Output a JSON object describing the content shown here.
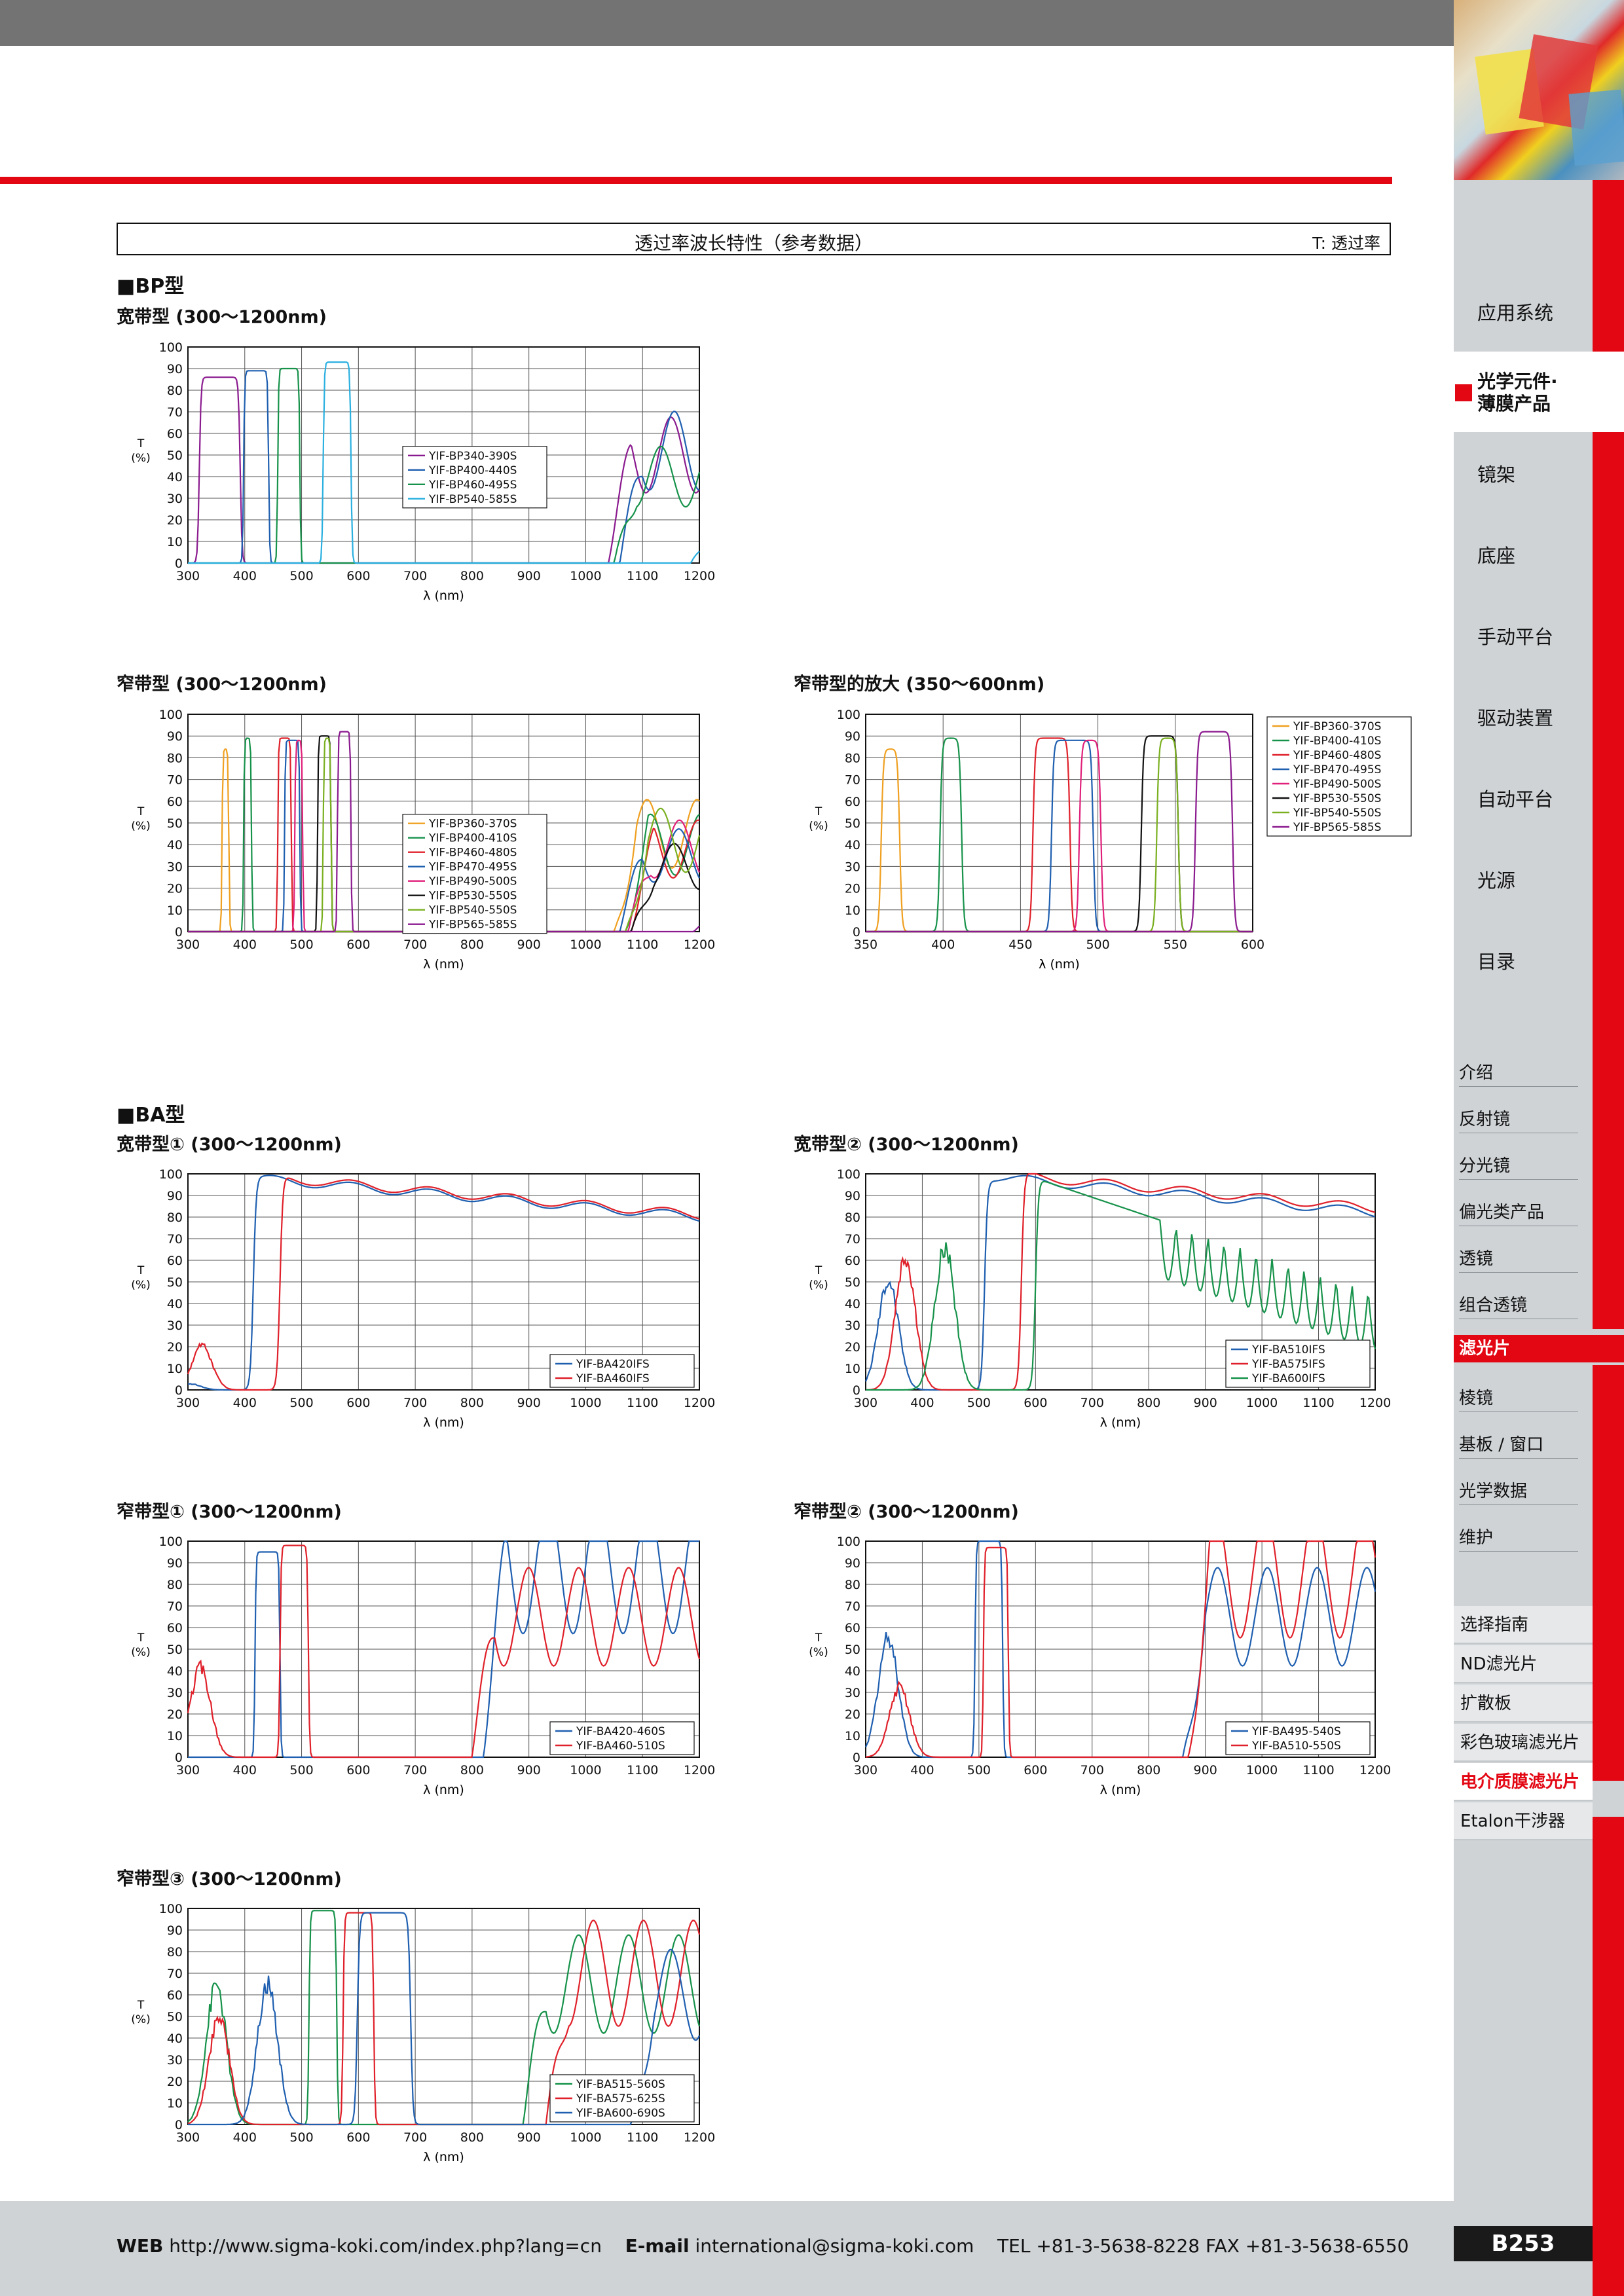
{
  "header": {
    "table_title": "透过率波长特性（参考数据）",
    "table_note": "T: 透过率"
  },
  "sections": {
    "bp": "■BP型",
    "ba": "■BA型"
  },
  "charts": {
    "bp_wide": {
      "title": "宽带型 (300～1200nm)"
    },
    "bp_narrow": {
      "title": "窄带型 (300～1200nm)"
    },
    "bp_zoom": {
      "title": "窄带型的放大 (350～600nm)"
    },
    "ba_wide1": {
      "title": "宽带型① (300～1200nm)"
    },
    "ba_wide2": {
      "title": "宽带型② (300～1200nm)"
    },
    "ba_narrow1": {
      "title": "窄带型① (300～1200nm)"
    },
    "ba_narrow2": {
      "title": "窄带型② (300～1200nm)"
    },
    "ba_narrow3": {
      "title": "窄带型③ (300～1200nm)"
    }
  },
  "chart_data": [
    {
      "id": "bp_wide",
      "type": "line",
      "xlabel": "λ (nm)",
      "ylabel": "T\n(%)",
      "xlim": [
        300,
        1200
      ],
      "ylim": [
        0,
        100
      ],
      "xticks": [
        300,
        400,
        500,
        600,
        700,
        800,
        900,
        1000,
        1100,
        1200
      ],
      "yticks": [
        0,
        10,
        20,
        30,
        40,
        50,
        60,
        70,
        80,
        90,
        100
      ],
      "legend": "center",
      "series": [
        {
          "name": "YIF-BP340-390S",
          "color": "#8b1a8f",
          "band": [
            320,
            392
          ],
          "peak": 86,
          "tail": [
            1040,
            50
          ]
        },
        {
          "name": "YIF-BP400-440S",
          "color": "#1f5fb0",
          "band": [
            398,
            442
          ],
          "peak": 89,
          "tail": [
            1060,
            52
          ]
        },
        {
          "name": "YIF-BP460-495S",
          "color": "#16924a",
          "band": [
            458,
            497
          ],
          "peak": 90,
          "tail": [
            1050,
            40
          ]
        },
        {
          "name": "YIF-BP540-585S",
          "color": "#2ab0e0",
          "band": [
            538,
            587
          ],
          "peak": 93,
          "tail": [
            1185,
            20
          ]
        }
      ]
    },
    {
      "id": "bp_narrow",
      "type": "line",
      "xlabel": "λ (nm)",
      "ylabel": "T\n(%)",
      "xlim": [
        300,
        1200
      ],
      "ylim": [
        0,
        100
      ],
      "xticks": [
        300,
        400,
        500,
        600,
        700,
        800,
        900,
        1000,
        1100,
        1200
      ],
      "yticks": [
        0,
        10,
        20,
        30,
        40,
        50,
        60,
        70,
        80,
        90,
        100
      ],
      "legend": "center",
      "series": [
        {
          "name": "YIF-BP360-370S",
          "color": "#f0a020",
          "band": [
            360,
            372
          ],
          "peak": 84,
          "tail": [
            1050,
            45
          ]
        },
        {
          "name": "YIF-BP400-410S",
          "color": "#16924a",
          "band": [
            398,
            412
          ],
          "peak": 89,
          "tail": [
            1070,
            40
          ]
        },
        {
          "name": "YIF-BP460-480S",
          "color": "#e0202a",
          "band": [
            458,
            482
          ],
          "peak": 89,
          "tail": [
            1080,
            38
          ]
        },
        {
          "name": "YIF-BP470-495S",
          "color": "#1f5fb0",
          "band": [
            470,
            497
          ],
          "peak": 88,
          "tail": [
            1060,
            35
          ]
        },
        {
          "name": "YIF-BP490-500S",
          "color": "#e0207a",
          "band": [
            488,
            502
          ],
          "peak": 88,
          "tail": [
            1075,
            38
          ]
        },
        {
          "name": "YIF-BP530-550S",
          "color": "#111111",
          "band": [
            528,
            552
          ],
          "peak": 90,
          "tail": [
            1080,
            30
          ]
        },
        {
          "name": "YIF-BP540-550S",
          "color": "#7ab020",
          "band": [
            538,
            552
          ],
          "peak": 89,
          "tail": [
            1070,
            42
          ]
        },
        {
          "name": "YIF-BP565-585S",
          "color": "#8b1a8f",
          "band": [
            563,
            587
          ],
          "peak": 92,
          "tail": [
            1190,
            15
          ]
        }
      ]
    },
    {
      "id": "bp_zoom",
      "type": "line",
      "xlabel": "λ (nm)",
      "ylabel": "T\n(%)",
      "xlim": [
        350,
        600
      ],
      "ylim": [
        0,
        100
      ],
      "xticks": [
        350,
        400,
        450,
        500,
        550,
        600
      ],
      "yticks": [
        0,
        10,
        20,
        30,
        40,
        50,
        60,
        70,
        80,
        90,
        100
      ],
      "legend": "top-right-outside",
      "series": [
        {
          "name": "YIF-BP360-370S",
          "color": "#f0a020",
          "band": [
            360,
            372
          ],
          "peak": 84
        },
        {
          "name": "YIF-BP400-410S",
          "color": "#16924a",
          "band": [
            398,
            412
          ],
          "peak": 89
        },
        {
          "name": "YIF-BP460-480S",
          "color": "#e0202a",
          "band": [
            458,
            482
          ],
          "peak": 89
        },
        {
          "name": "YIF-BP470-495S",
          "color": "#1f5fb0",
          "band": [
            470,
            497
          ],
          "peak": 88
        },
        {
          "name": "YIF-BP490-500S",
          "color": "#e0207a",
          "band": [
            488,
            502
          ],
          "peak": 88
        },
        {
          "name": "YIF-BP530-550S",
          "color": "#111111",
          "band": [
            528,
            552
          ],
          "peak": 90
        },
        {
          "name": "YIF-BP540-550S",
          "color": "#7ab020",
          "band": [
            538,
            552
          ],
          "peak": 89
        },
        {
          "name": "YIF-BP565-585S",
          "color": "#8b1a8f",
          "band": [
            563,
            587
          ],
          "peak": 92
        }
      ]
    },
    {
      "id": "ba_wide1",
      "type": "line",
      "xlabel": "λ (nm)",
      "ylabel": "T\n(%)",
      "xlim": [
        300,
        1200
      ],
      "ylim": [
        0,
        100
      ],
      "xticks": [
        300,
        400,
        500,
        600,
        700,
        800,
        900,
        1000,
        1100,
        1200
      ],
      "yticks": [
        0,
        10,
        20,
        30,
        40,
        50,
        60,
        70,
        80,
        90,
        100
      ],
      "legend": "bottom-right",
      "series": [
        {
          "name": "YIF-BA420IFS",
          "color": "#1f5fb0",
          "edge": 415,
          "high": 98,
          "end": 80,
          "bump": [
            305,
            3
          ]
        },
        {
          "name": "YIF-BA460IFS",
          "color": "#e0202a",
          "edge": 462,
          "high": 98,
          "end": 81,
          "bump": [
            325,
            22
          ]
        }
      ]
    },
    {
      "id": "ba_wide2",
      "type": "line",
      "xlabel": "λ (nm)",
      "ylabel": "T\n(%)",
      "xlim": [
        300,
        1200
      ],
      "ylim": [
        0,
        100
      ],
      "xticks": [
        300,
        400,
        500,
        600,
        700,
        800,
        900,
        1000,
        1100,
        1200
      ],
      "yticks": [
        0,
        10,
        20,
        30,
        40,
        50,
        60,
        70,
        80,
        90,
        100
      ],
      "legend": "bottom-right",
      "series": [
        {
          "name": "YIF-BA510IFS",
          "color": "#1f5fb0",
          "edge": 510,
          "high": 99,
          "end": 82,
          "bump": [
            340,
            55
          ]
        },
        {
          "name": "YIF-BA575IFS",
          "color": "#e0202a",
          "edge": 575,
          "high": 99,
          "end": 84,
          "bump": [
            370,
            65
          ]
        },
        {
          "name": "YIF-BA600IFS",
          "color": "#16924a",
          "edge": 600,
          "high": 98,
          "end": 45,
          "bump": [
            440,
            72
          ]
        }
      ]
    },
    {
      "id": "ba_narrow1",
      "type": "line",
      "xlabel": "λ (nm)",
      "ylabel": "T\n(%)",
      "xlim": [
        300,
        1200
      ],
      "ylim": [
        0,
        100
      ],
      "xticks": [
        300,
        400,
        500,
        600,
        700,
        800,
        900,
        1000,
        1100,
        1200
      ],
      "yticks": [
        0,
        10,
        20,
        30,
        40,
        50,
        60,
        70,
        80,
        90,
        100
      ],
      "legend": "bottom-right",
      "series": [
        {
          "name": "YIF-BA420-460S",
          "color": "#1f5fb0",
          "band": [
            418,
            462
          ],
          "peak": 95,
          "tail": [
            820,
            88
          ]
        },
        {
          "name": "YIF-BA460-510S",
          "color": "#e0202a",
          "band": [
            462,
            512
          ],
          "peak": 98,
          "tail": [
            800,
            65
          ],
          "bump": [
            322,
            45
          ]
        }
      ]
    },
    {
      "id": "ba_narrow2",
      "type": "line",
      "xlabel": "λ (nm)",
      "ylabel": "T\n(%)",
      "xlim": [
        300,
        1200
      ],
      "ylim": [
        0,
        100
      ],
      "xticks": [
        300,
        400,
        500,
        600,
        700,
        800,
        900,
        1000,
        1100,
        1200
      ],
      "yticks": [
        0,
        10,
        20,
        30,
        40,
        50,
        60,
        70,
        80,
        90,
        100
      ],
      "legend": "bottom-right",
      "series": [
        {
          "name": "YIF-BA495-540S",
          "color": "#1f5fb0",
          "band": [
            493,
            542
          ],
          "peak": 100,
          "tail": [
            860,
            65
          ],
          "bump": [
            340,
            60
          ]
        },
        {
          "name": "YIF-BA510-550S",
          "color": "#e0202a",
          "band": [
            508,
            552
          ],
          "peak": 97,
          "tail": [
            870,
            85
          ],
          "bump": [
            360,
            35
          ]
        }
      ]
    },
    {
      "id": "ba_narrow3",
      "type": "line",
      "xlabel": "λ (nm)",
      "ylabel": "T\n(%)",
      "xlim": [
        300,
        1200
      ],
      "ylim": [
        0,
        100
      ],
      "xticks": [
        300,
        400,
        500,
        600,
        700,
        800,
        900,
        1000,
        1100,
        1200
      ],
      "yticks": [
        0,
        10,
        20,
        30,
        40,
        50,
        60,
        70,
        80,
        90,
        100
      ],
      "legend": "bottom-right",
      "series": [
        {
          "name": "YIF-BA515-560S",
          "color": "#16924a",
          "band": [
            513,
            562
          ],
          "peak": 99,
          "tail": [
            890,
            65
          ],
          "bump": [
            350,
            70
          ]
        },
        {
          "name": "YIF-BA575-625S",
          "color": "#e0202a",
          "band": [
            573,
            627
          ],
          "peak": 98,
          "tail": [
            930,
            70
          ],
          "bump": [
            355,
            55
          ]
        },
        {
          "name": "YIF-BA600-690S",
          "color": "#1f5fb0",
          "band": [
            598,
            692
          ],
          "peak": 98,
          "tail": [
            1080,
            60
          ],
          "bump": [
            440,
            70
          ]
        }
      ]
    }
  ],
  "nav": {
    "main": [
      "应用系统",
      "镜架",
      "底座",
      "手动平台",
      "驱动装置",
      "自动平台",
      "光源",
      "目录"
    ],
    "active_main": "光学元件·\n薄膜产品",
    "sub": [
      "介绍",
      "反射镜",
      "分光镜",
      "偏光类产品",
      "透镜",
      "组合透镜",
      "滤光片",
      "棱镜",
      "基板 / 窗口",
      "光学数据",
      "维护"
    ],
    "sub_active_index": 6,
    "guide": [
      "选择指南",
      "ND滤光片",
      "扩散板",
      "彩色玻璃滤光片",
      "电介质膜滤光片",
      "Etalon干涉器"
    ],
    "guide_active_index": 4
  },
  "footer": {
    "web_label": "WEB",
    "web": "http://www.sigma-koki.com/index.php?lang=cn",
    "email_label": "E-mail",
    "email": "international@sigma-koki.com",
    "tel": "TEL +81-3-5638-8228 FAX +81-3-5638-6550",
    "page": "B253"
  },
  "colors": {
    "accent": "#e30613",
    "sidebar": "#cfd3d6",
    "topbar": "#737373"
  }
}
